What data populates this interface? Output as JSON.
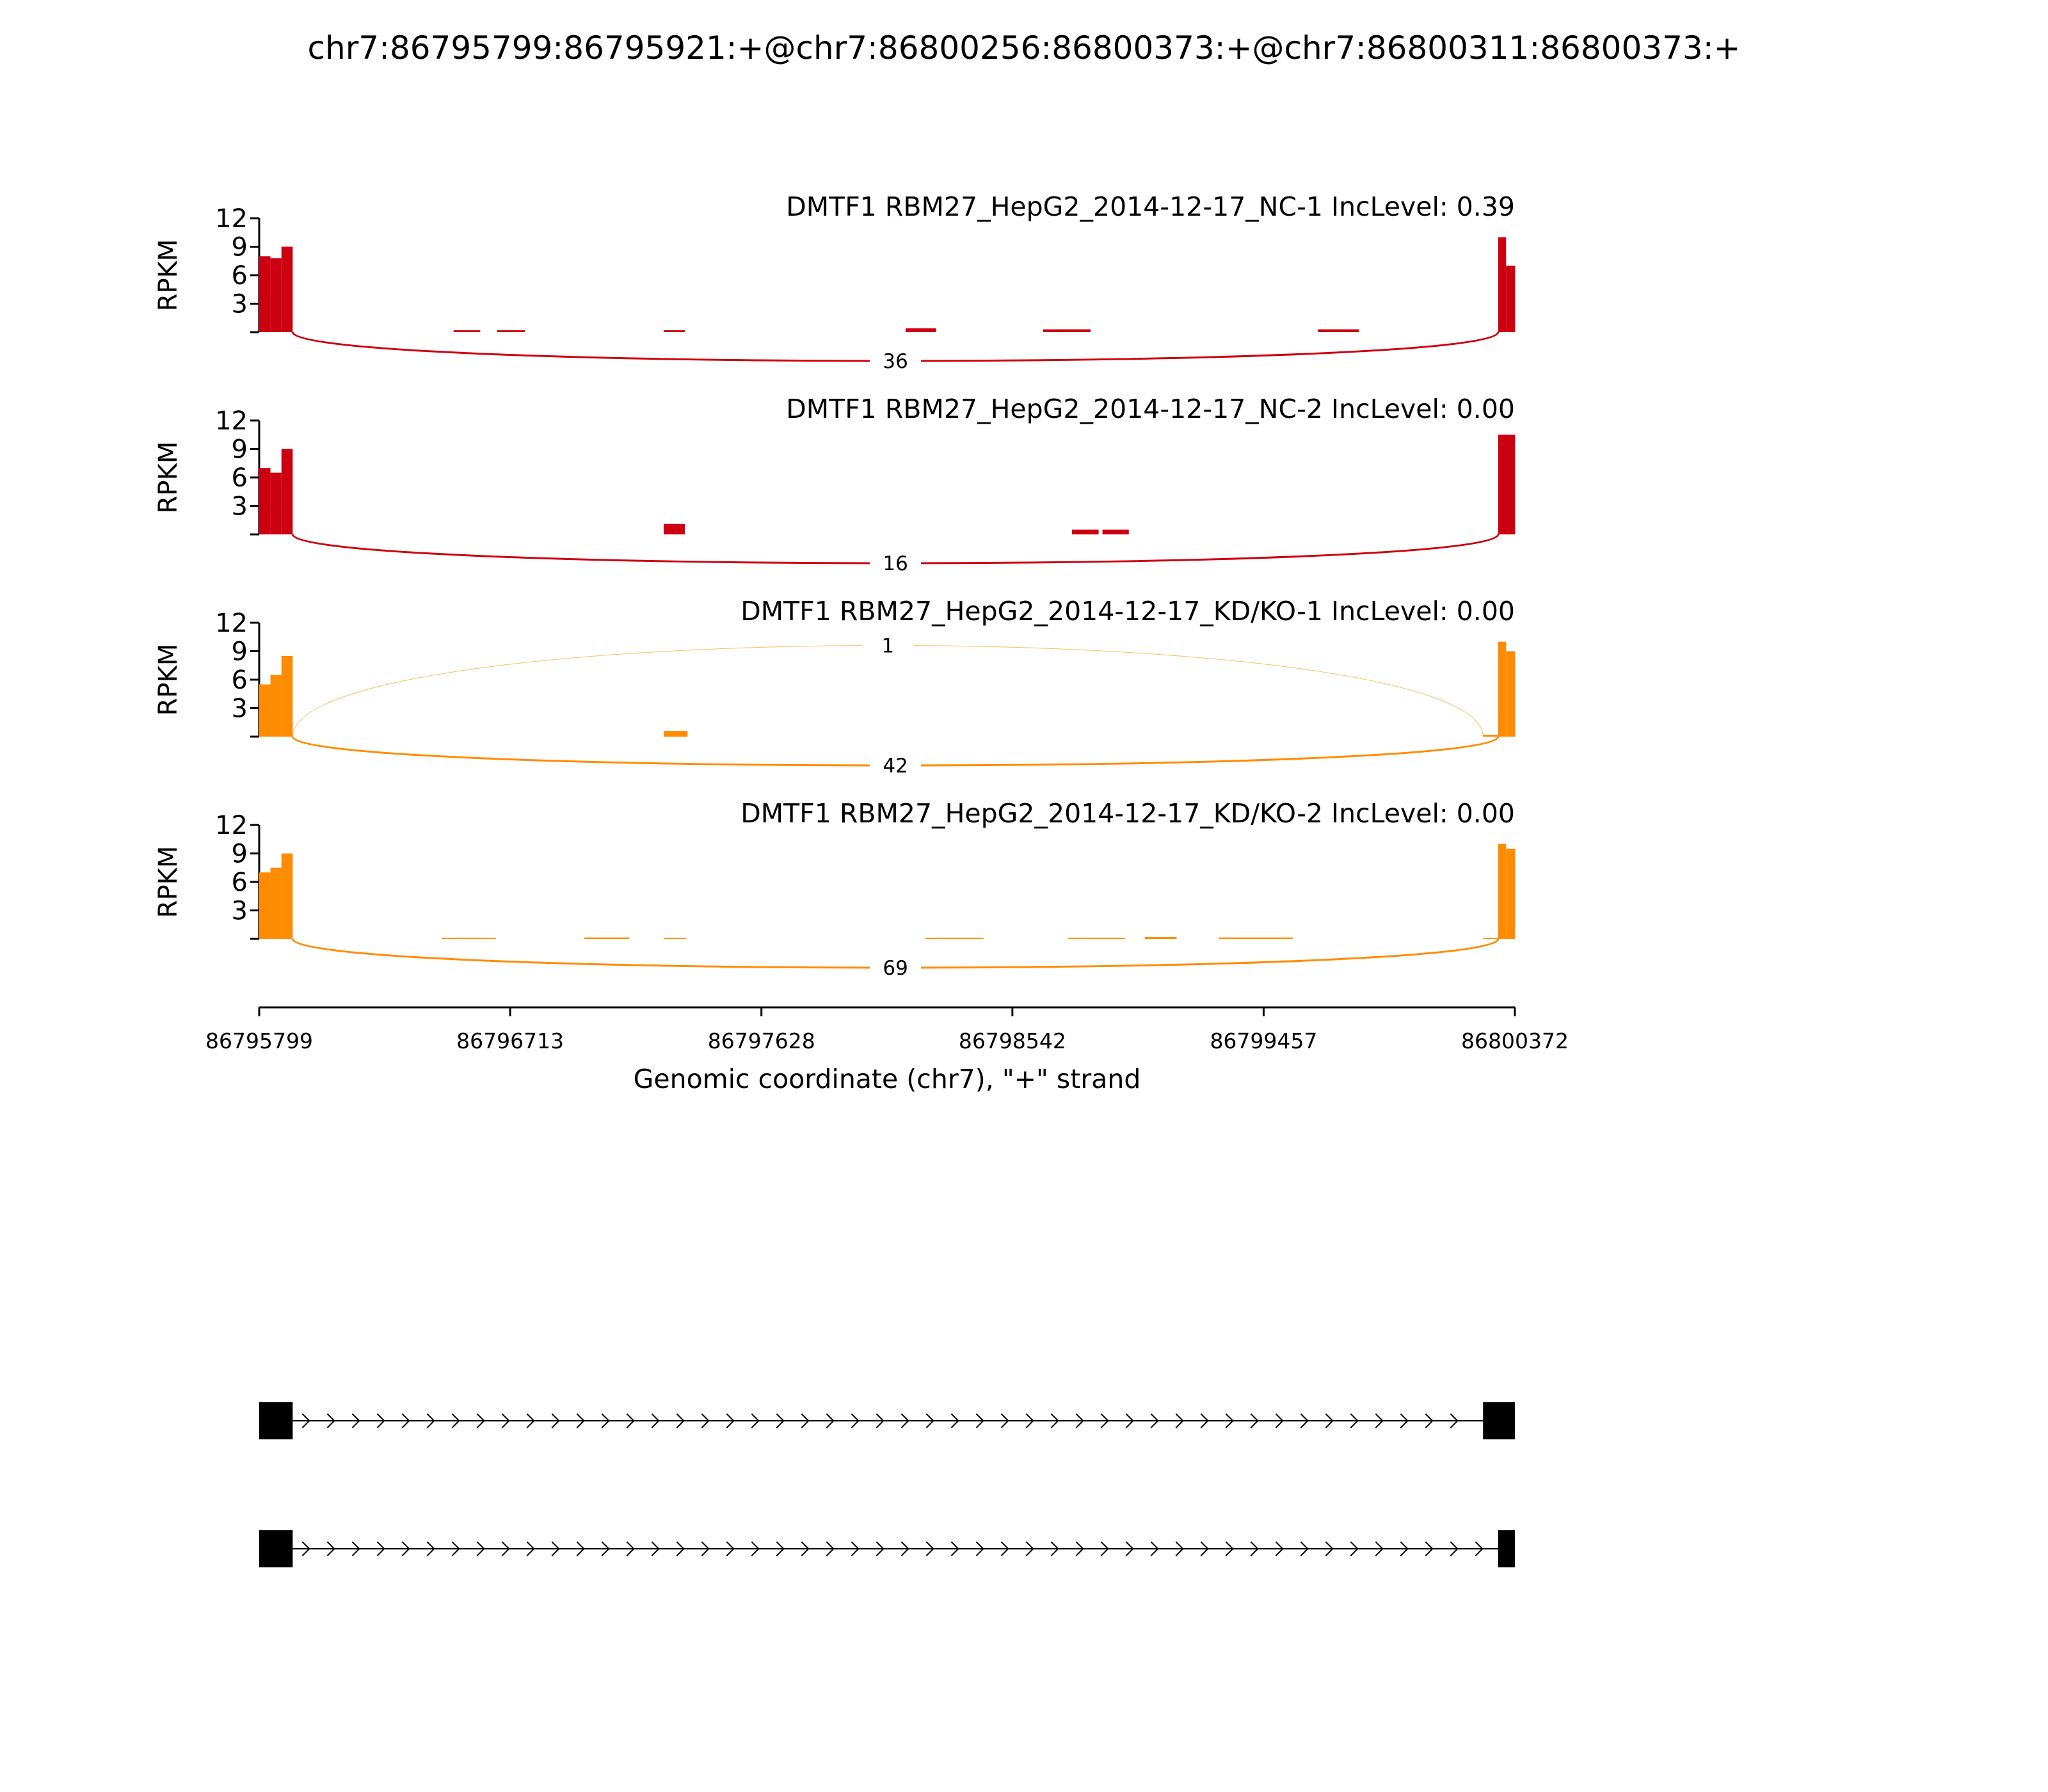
{
  "chart_data": {
    "type": "sashimi",
    "title": "chr7:86795799:86795921:+@chr7:86800256:86800373:+@chr7:86800311:86800373:+",
    "xlabel": "Genomic coordinate (chr7), \"+\" strand",
    "xlim": [
      86795799,
      86800372
    ],
    "xticks": [
      86795799,
      86796713,
      86797628,
      86798542,
      86799457,
      86800372
    ],
    "panels": [
      {
        "label": "DMTF1 RBM27_HepG2_2014-12-17_NC-1 IncLevel: 0.39",
        "color": "#cc0011",
        "ylabel": "RPKM",
        "ylim": [
          0,
          12
        ],
        "yticks": [
          3,
          6,
          9,
          12
        ],
        "coverage": {
          "start": [
            86795799,
            86795840,
            86795880,
            86796507,
            86796666,
            86797272,
            86798153,
            86798654,
            86799655,
            86800311,
            86800340
          ],
          "end": [
            86795840,
            86795880,
            86795921,
            86796604,
            86796767,
            86797349,
            86798264,
            86798827,
            86799804,
            86800340,
            86800373
          ],
          "values": [
            8,
            7.8,
            9,
            0.2,
            0.2,
            0.2,
            0.4,
            0.3,
            0.3,
            10,
            7
          ]
        },
        "junctions": {
          "start": [
            86795921
          ],
          "end": [
            86800311
          ],
          "count": [
            36
          ]
        }
      },
      {
        "label": "DMTF1 RBM27_HepG2_2014-12-17_NC-2 IncLevel: 0.00",
        "color": "#cc0011",
        "ylabel": "RPKM",
        "ylim": [
          0,
          12
        ],
        "yticks": [
          3,
          6,
          9,
          12
        ],
        "coverage": {
          "start": [
            86795799,
            86795840,
            86795880,
            86797272,
            86798759,
            86798870,
            86800311
          ],
          "end": [
            86795840,
            86795880,
            86795921,
            86797349,
            86798856,
            86798966,
            86800373
          ],
          "values": [
            7,
            6.5,
            9,
            1.1,
            0.5,
            0.5,
            10.5
          ]
        },
        "junctions": {
          "start": [
            86795921
          ],
          "end": [
            86800311
          ],
          "count": [
            16
          ]
        }
      },
      {
        "label": "DMTF1 RBM27_HepG2_2014-12-17_KD/KO-1 IncLevel: 0.00",
        "color": "#ff8c00",
        "ylabel": "RPKM",
        "ylim": [
          0,
          12
        ],
        "yticks": [
          3,
          6,
          9,
          12
        ],
        "coverage": {
          "start": [
            86795799,
            86795840,
            86795880,
            86797272,
            86800256,
            86800311,
            86800340
          ],
          "end": [
            86795840,
            86795880,
            86795921,
            86797359,
            86800311,
            86800340,
            86800373
          ],
          "values": [
            5.5,
            6.5,
            8.5,
            0.6,
            0.2,
            10,
            9
          ]
        },
        "junctions": {
          "start": [
            86795921,
            86795921
          ],
          "end": [
            86800311,
            86800256
          ],
          "count": [
            42,
            1
          ]
        }
      },
      {
        "label": "DMTF1 RBM27_HepG2_2014-12-17_KD/KO-2 IncLevel: 0.00",
        "color": "#ff8c00",
        "ylabel": "RPKM",
        "ylim": [
          0,
          12
        ],
        "yticks": [
          3,
          6,
          9,
          12
        ],
        "coverage": {
          "start": [
            86795799,
            86795840,
            86795880,
            86796463,
            86796983,
            86797272,
            86798225,
            86798745,
            86799024,
            86799294,
            86800256,
            86800311,
            86800340
          ],
          "end": [
            86795840,
            86795880,
            86795921,
            86796661,
            86797147,
            86797354,
            86798437,
            86798952,
            86799140,
            86799563,
            86800311,
            86800340,
            86800373
          ],
          "values": [
            7,
            7.5,
            9,
            0.1,
            0.15,
            0.1,
            0.1,
            0.1,
            0.2,
            0.15,
            0.1,
            10,
            9.5
          ]
        },
        "junctions": {
          "start": [
            86795921
          ],
          "end": [
            86800311
          ],
          "count": [
            69
          ]
        }
      }
    ],
    "transcripts": [
      {
        "exons_start": [
          86795799,
          86800256
        ],
        "exons_end": [
          86795921,
          86800373
        ]
      },
      {
        "exons_start": [
          86795799,
          86800311
        ],
        "exons_end": [
          86795921,
          86800373
        ]
      }
    ]
  }
}
